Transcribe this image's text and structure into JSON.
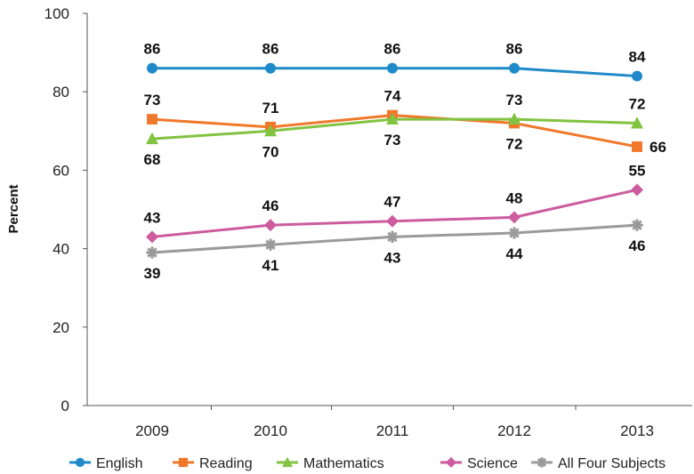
{
  "chart_data": {
    "type": "line",
    "title": "",
    "xlabel": "",
    "ylabel": "Percent",
    "categories": [
      "2009",
      "2010",
      "2011",
      "2012",
      "2013"
    ],
    "ylim": [
      0,
      100
    ],
    "yticks": [
      "0",
      "20",
      "40",
      "60",
      "80",
      "100"
    ],
    "grid": false,
    "legend_position": "bottom",
    "series": [
      {
        "name": "English",
        "values": [
          86,
          86,
          86,
          86,
          84
        ],
        "color": "#1f8ac9",
        "marker": "circle",
        "label_side": [
          "above",
          "above",
          "above",
          "above",
          "above"
        ]
      },
      {
        "name": "Reading",
        "values": [
          73,
          71,
          74,
          72,
          66
        ],
        "color": "#f0782a",
        "marker": "square",
        "label_side": [
          "above",
          "above",
          "above",
          "below",
          "right"
        ]
      },
      {
        "name": "Mathematics",
        "values": [
          68,
          70,
          73,
          73,
          72
        ],
        "color": "#82c341",
        "marker": "triangle",
        "label_side": [
          "below",
          "below",
          "below",
          "above",
          "above"
        ]
      },
      {
        "name": "Science",
        "values": [
          43,
          46,
          47,
          48,
          55
        ],
        "color": "#cc5c9e",
        "marker": "diamond",
        "label_side": [
          "above",
          "above",
          "above",
          "above",
          "above"
        ]
      },
      {
        "name": "All Four Subjects",
        "values": [
          39,
          41,
          43,
          44,
          46
        ],
        "color": "#9a9a9a",
        "marker": "star",
        "label_side": [
          "below",
          "below",
          "below",
          "below",
          "below"
        ]
      }
    ]
  }
}
